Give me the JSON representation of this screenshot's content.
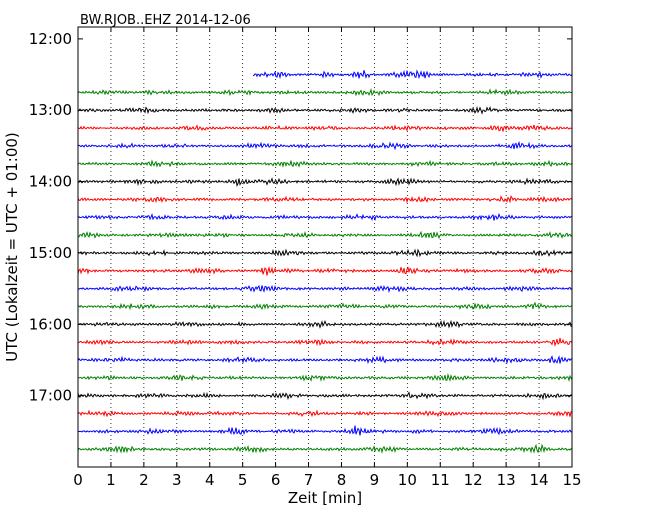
{
  "chart_data": {
    "type": "line",
    "title": "BW.RJOB..EHZ 2014-12-06",
    "xlabel": "Zeit  [min]",
    "ylabel": "UTC (Lokalzeit = UTC + 01:00)",
    "xlim": [
      0,
      15
    ],
    "xticks": [
      "0",
      "1",
      "2",
      "3",
      "4",
      "5",
      "6",
      "7",
      "8",
      "9",
      "10",
      "11",
      "12",
      "13",
      "14",
      "15"
    ],
    "ylim_minutes": [
      710,
      1080
    ],
    "yticks": [
      {
        "label": "12:00",
        "minutes": 720
      },
      {
        "label": "13:00",
        "minutes": 780
      },
      {
        "label": "14:00",
        "minutes": 840
      },
      {
        "label": "15:00",
        "minutes": 900
      },
      {
        "label": "16:00",
        "minutes": 960
      },
      {
        "label": "17:00",
        "minutes": 1020
      }
    ],
    "grid": "vertical-dotted",
    "colors": [
      "#0000ff",
      "#008000",
      "#000000",
      "#ff0000"
    ],
    "trace_minutes_start": 750,
    "trace_interval_minutes": 15,
    "trace_count": 22,
    "first_trace_start_min": 5.3,
    "bursts": [
      {
        "trace": 0,
        "x": 7.6
      },
      {
        "trace": 0,
        "x": 8.6
      },
      {
        "trace": 0,
        "x": 10.4
      },
      {
        "trace": 3,
        "x": 12.8
      },
      {
        "trace": 6,
        "x": 4.9
      },
      {
        "trace": 7,
        "x": 13.0
      },
      {
        "trace": 11,
        "x": 5.7
      },
      {
        "trace": 11,
        "x": 9.9
      },
      {
        "trace": 13,
        "x": 13.9
      },
      {
        "trace": 15,
        "x": 14.6
      },
      {
        "trace": 16,
        "x": 14.5
      },
      {
        "trace": 20,
        "x": 8.4
      },
      {
        "trace": 20,
        "x": 4.8
      },
      {
        "trace": 21,
        "x": 14.0
      }
    ]
  }
}
